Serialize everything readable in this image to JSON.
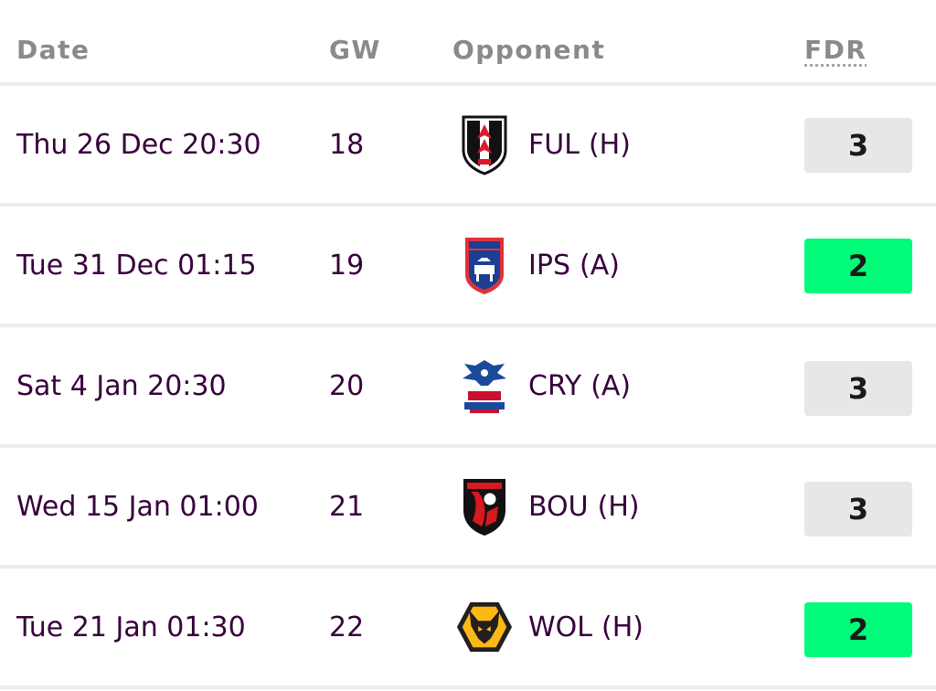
{
  "headers": {
    "date": "Date",
    "gw": "GW",
    "opponent": "Opponent",
    "fdr": "FDR"
  },
  "colors": {
    "fdr_3": "#e7e7e7",
    "fdr_2": "#01fc7a"
  },
  "fixtures": [
    {
      "date": "Thu 26 Dec 20:30",
      "gw": "18",
      "team": "FUL",
      "venue": "(H)",
      "fdr": "3",
      "badge": "fulham-crest-icon"
    },
    {
      "date": "Tue 31 Dec 01:15",
      "gw": "19",
      "team": "IPS",
      "venue": "(A)",
      "fdr": "2",
      "badge": "ipswich-crest-icon"
    },
    {
      "date": "Sat 4 Jan 20:30",
      "gw": "20",
      "team": "CRY",
      "venue": "(A)",
      "fdr": "3",
      "badge": "crystal-palace-crest-icon"
    },
    {
      "date": "Wed 15 Jan 01:00",
      "gw": "21",
      "team": "BOU",
      "venue": "(H)",
      "fdr": "3",
      "badge": "bournemouth-crest-icon"
    },
    {
      "date": "Tue 21 Jan 01:30",
      "gw": "22",
      "team": "WOL",
      "venue": "(H)",
      "fdr": "2",
      "badge": "wolves-crest-icon"
    }
  ]
}
